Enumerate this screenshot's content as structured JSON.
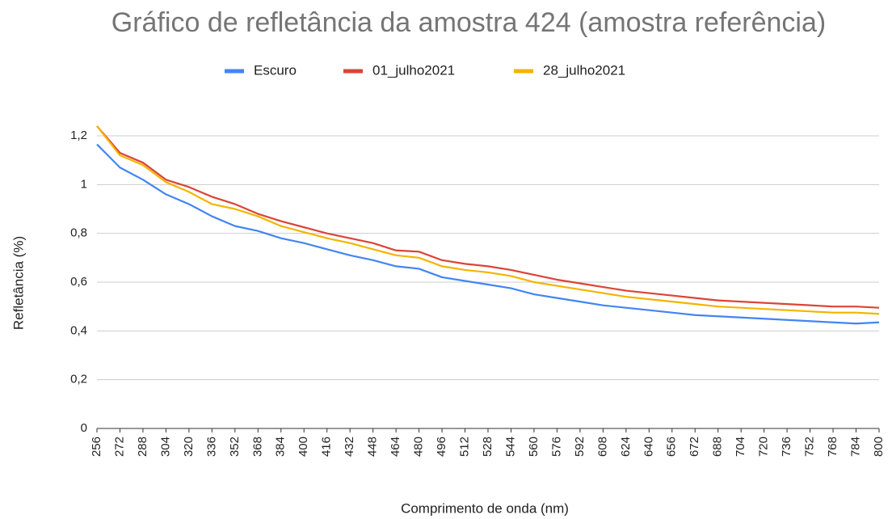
{
  "chart_data": {
    "type": "line",
    "title": "Gráfico de refletância da amostra 424 (amostra referência)",
    "x_label": "Comprimento de onda (nm)",
    "y_label": "Refletância (%)",
    "x": [
      256,
      272,
      288,
      304,
      320,
      336,
      352,
      368,
      384,
      400,
      416,
      432,
      448,
      464,
      480,
      496,
      512,
      528,
      544,
      560,
      576,
      592,
      608,
      624,
      640,
      656,
      672,
      688,
      704,
      720,
      736,
      752,
      768,
      784,
      800
    ],
    "series": [
      {
        "name": "Escuro",
        "color": "#4285f4",
        "values": [
          1.165,
          1.07,
          1.02,
          0.96,
          0.92,
          0.87,
          0.83,
          0.81,
          0.78,
          0.76,
          0.735,
          0.71,
          0.69,
          0.665,
          0.655,
          0.62,
          0.605,
          0.59,
          0.575,
          0.55,
          0.535,
          0.52,
          0.505,
          0.495,
          0.485,
          0.475,
          0.465,
          0.46,
          0.455,
          0.45,
          0.445,
          0.44,
          0.435,
          0.43,
          0.435
        ]
      },
      {
        "name": "01_julho2021",
        "color": "#db4437",
        "values": [
          1.24,
          1.13,
          1.09,
          1.02,
          0.99,
          0.95,
          0.92,
          0.88,
          0.85,
          0.825,
          0.8,
          0.78,
          0.76,
          0.73,
          0.725,
          0.69,
          0.675,
          0.665,
          0.65,
          0.63,
          0.61,
          0.595,
          0.58,
          0.565,
          0.555,
          0.545,
          0.535,
          0.525,
          0.52,
          0.515,
          0.51,
          0.505,
          0.5,
          0.5,
          0.495
        ]
      },
      {
        "name": "28_julho2021",
        "color": "#f4b400",
        "values": [
          1.24,
          1.12,
          1.08,
          1.01,
          0.97,
          0.92,
          0.9,
          0.87,
          0.83,
          0.805,
          0.78,
          0.76,
          0.735,
          0.71,
          0.7,
          0.665,
          0.65,
          0.64,
          0.625,
          0.6,
          0.585,
          0.57,
          0.555,
          0.54,
          0.53,
          0.52,
          0.51,
          0.5,
          0.495,
          0.49,
          0.485,
          0.48,
          0.475,
          0.475,
          0.47
        ]
      }
    ],
    "xlim": [
      256,
      800
    ],
    "xticks": [
      256,
      272,
      288,
      304,
      320,
      336,
      352,
      368,
      384,
      400,
      416,
      432,
      448,
      464,
      480,
      496,
      512,
      528,
      544,
      560,
      576,
      592,
      608,
      624,
      640,
      656,
      672,
      688,
      704,
      720,
      736,
      752,
      768,
      784,
      800
    ],
    "ylim": [
      0,
      1.2
    ],
    "yticks": [
      0,
      {
        "value": 0.2,
        "label": "0,2"
      },
      {
        "value": 0.4,
        "label": "0,4"
      },
      {
        "value": 0.6,
        "label": "0,6"
      },
      {
        "value": 0.8,
        "label": "0,8"
      },
      1,
      {
        "value": 1.2,
        "label": "1,2"
      }
    ],
    "grid": true,
    "legend": "top"
  }
}
